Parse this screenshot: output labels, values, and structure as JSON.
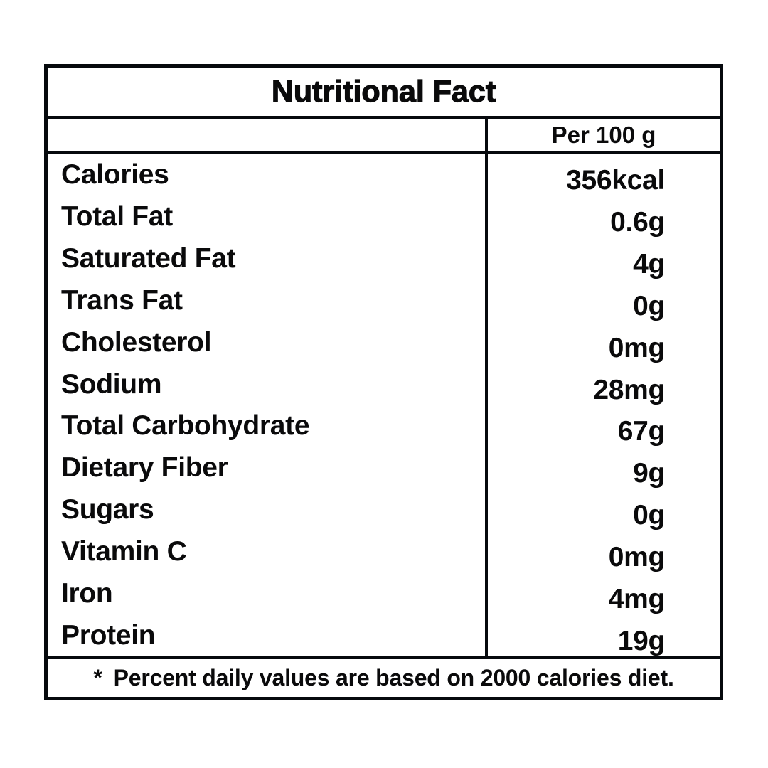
{
  "label": {
    "title": "Nutritional Fact",
    "column_header": "Per 100 g",
    "rows": [
      {
        "name": "Calories",
        "value": "356kcal"
      },
      {
        "name": "Total Fat",
        "value": "0.6g"
      },
      {
        "name": "Saturated Fat",
        "value": "4g"
      },
      {
        "name": "Trans Fat",
        "value": "0g"
      },
      {
        "name": "Cholesterol",
        "value": "0mg"
      },
      {
        "name": "Sodium",
        "value": "28mg"
      },
      {
        "name": "Total Carbohydrate",
        "value": "67g"
      },
      {
        "name": "Dietary Fiber",
        "value": "9g"
      },
      {
        "name": "Sugars",
        "value": "0g"
      },
      {
        "name": "Vitamin C",
        "value": "0mg"
      },
      {
        "name": "Iron",
        "value": "4mg"
      },
      {
        "name": "Protein",
        "value": "19g"
      }
    ],
    "footnote": {
      "marker": "*",
      "text": "Percent daily values are based on 2000 calories diet."
    },
    "colors": {
      "border": "#06090d",
      "text": "#0a0a0b",
      "background": "#ffffff"
    }
  }
}
